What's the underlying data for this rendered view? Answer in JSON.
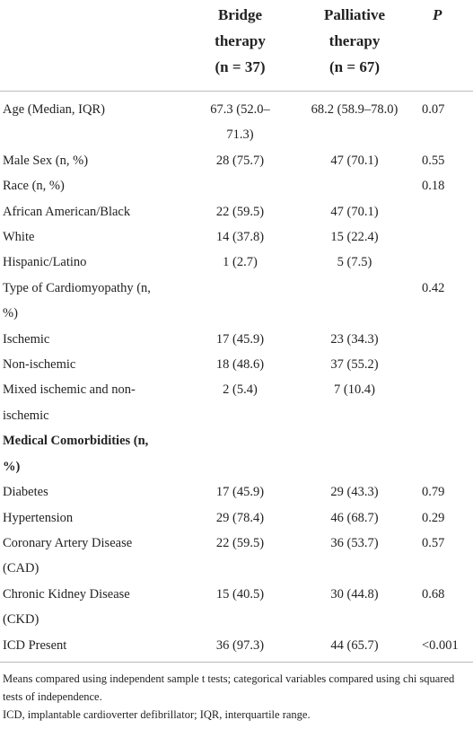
{
  "table": {
    "header": [
      null,
      [
        "Bridge therapy",
        "(n = 37)"
      ],
      [
        "Palliative therapy",
        "(n = 67)"
      ],
      "P"
    ],
    "rows": [
      [
        "Age (Median, IQR)",
        "67.3 (52.0–71.3)",
        "68.2 (58.9–78.0)",
        "0.07"
      ],
      [
        "Male Sex (n, %)",
        "28 (75.7)",
        "47 (70.1)",
        "0.55"
      ],
      [
        "Race (n, %)",
        null,
        null,
        "0.18"
      ],
      [
        "African American/Black",
        "22 (59.5)",
        "47 (70.1)",
        null
      ],
      [
        "White",
        "14 (37.8)",
        "15 (22.4)",
        null
      ],
      [
        "Hispanic/Latino",
        "1 (2.7)",
        "5 (7.5)",
        null
      ],
      [
        "Type of Cardiomyopathy (n, %)",
        null,
        null,
        "0.42"
      ],
      [
        "Ischemic",
        "17 (45.9)",
        "23 (34.3)",
        null
      ],
      [
        "Non-ischemic",
        "18 (48.6)",
        "37 (55.2)",
        null
      ],
      [
        "Mixed ischemic and non-ischemic",
        "2 (5.4)",
        "7 (10.4)",
        null
      ],
      [
        "Medical Comorbidities (n, %)",
        null,
        null,
        null
      ],
      [
        "Diabetes",
        "17 (45.9)",
        "29 (43.3)",
        "0.79"
      ],
      [
        "Hypertension",
        "29 (78.4)",
        "46 (68.7)",
        "0.29"
      ],
      [
        "Coronary Artery Disease (CAD)",
        "22 (59.5)",
        "36 (53.7)",
        "0.57"
      ],
      [
        "Chronic Kidney Disease (CKD)",
        "15 (40.5)",
        "30 (44.8)",
        "0.68"
      ],
      [
        "ICD Present",
        "36 (97.3)",
        "44 (65.7)",
        "<0.001"
      ]
    ]
  },
  "footnotes": [
    "Means compared using independent sample t tests; categorical variables compared using chi squared tests of independence.",
    "ICD, implantable cardioverter defibrillator; IQR, interquartile range."
  ]
}
